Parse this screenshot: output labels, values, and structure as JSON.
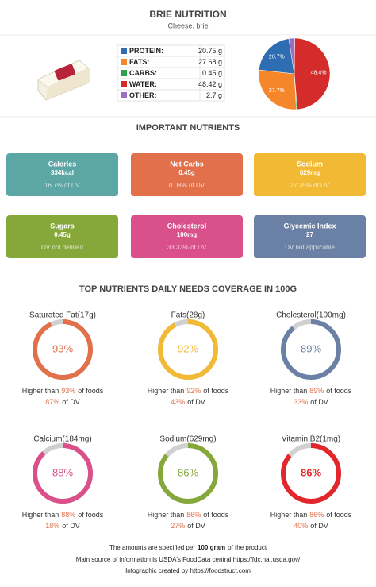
{
  "header": {
    "title": "BRIE NUTRITION",
    "subtitle": "Cheese, brie"
  },
  "chart_data": {
    "type": "pie",
    "categories": [
      "PROTEIN:",
      "FATS:",
      "CARBS:",
      "WATER:",
      "OTHER:"
    ],
    "values": [
      20.75,
      27.68,
      0.45,
      48.42,
      2.7
    ],
    "value_labels": [
      "20.75 g",
      "27.68 g",
      "0.45 g",
      "48.42 g",
      "2.7 g"
    ],
    "slice_labels": [
      "20.7%",
      "27.7%",
      null,
      "48.4%",
      null
    ],
    "colors": [
      "#2f6db3",
      "#f5862a",
      "#2ea24d",
      "#d42b2b",
      "#9b6ec6"
    ]
  },
  "important": {
    "title": "IMPORTANT NUTRIENTS",
    "cards": [
      {
        "name": "Calories",
        "amount": "334kcal",
        "dv": "16.7% of DV",
        "color": "#5da6a6"
      },
      {
        "name": "Net Carbs",
        "amount": "0.45g",
        "dv": "0.08% of DV",
        "color": "#e2704b"
      },
      {
        "name": "Sodium",
        "amount": "629mg",
        "dv": "27.35% of DV",
        "color": "#f1b934"
      },
      {
        "name": "Sugars",
        "amount": "0.45g",
        "dv": "DV not defined",
        "color": "#86a83a"
      },
      {
        "name": "Cholesterol",
        "amount": "100mg",
        "dv": "33.33% of DV",
        "color": "#d9508a"
      },
      {
        "name": "Glycemic Index",
        "amount": "27",
        "dv": "DV not applicable",
        "color": "#6a80a4"
      }
    ]
  },
  "coverage": {
    "title": "TOP NUTRIENTS DAILY NEEDS COVERAGE IN 100G",
    "higher_prefix": "Higher than",
    "higher_suffix": "of foods",
    "dv_suffix": "of DV",
    "items": [
      {
        "name": "Saturated Fat(17g)",
        "value": 93,
        "value_label": "93%",
        "dv": "87%",
        "color": "#e2704b"
      },
      {
        "name": "Fats(28g)",
        "value": 92,
        "value_label": "92%",
        "dv": "43%",
        "color": "#f1b934"
      },
      {
        "name": "Cholesterol(100mg)",
        "value": 89,
        "value_label": "89%",
        "dv": "33%",
        "color": "#6a80a4"
      },
      {
        "name": "Calcium(184mg)",
        "value": 88,
        "value_label": "88%",
        "dv": "18%",
        "color": "#d9508a"
      },
      {
        "name": "Sodium(629mg)",
        "value": 86,
        "value_label": "86%",
        "dv": "27%",
        "color": "#86a83a"
      },
      {
        "name": "Vitamin B2(1mg)",
        "value": 86,
        "value_label": "86%",
        "dv": "40%",
        "color": "#e3262c"
      }
    ]
  },
  "footer": {
    "line1_prefix": "The amounts are specified per",
    "line1_bold": "100 gram",
    "line1_suffix": "of the product",
    "line2": "Main source of information is USDA's FoodData central https://fdc.nal.usda.gov/",
    "line3": "Infographic created by https://foodstruct.com"
  }
}
